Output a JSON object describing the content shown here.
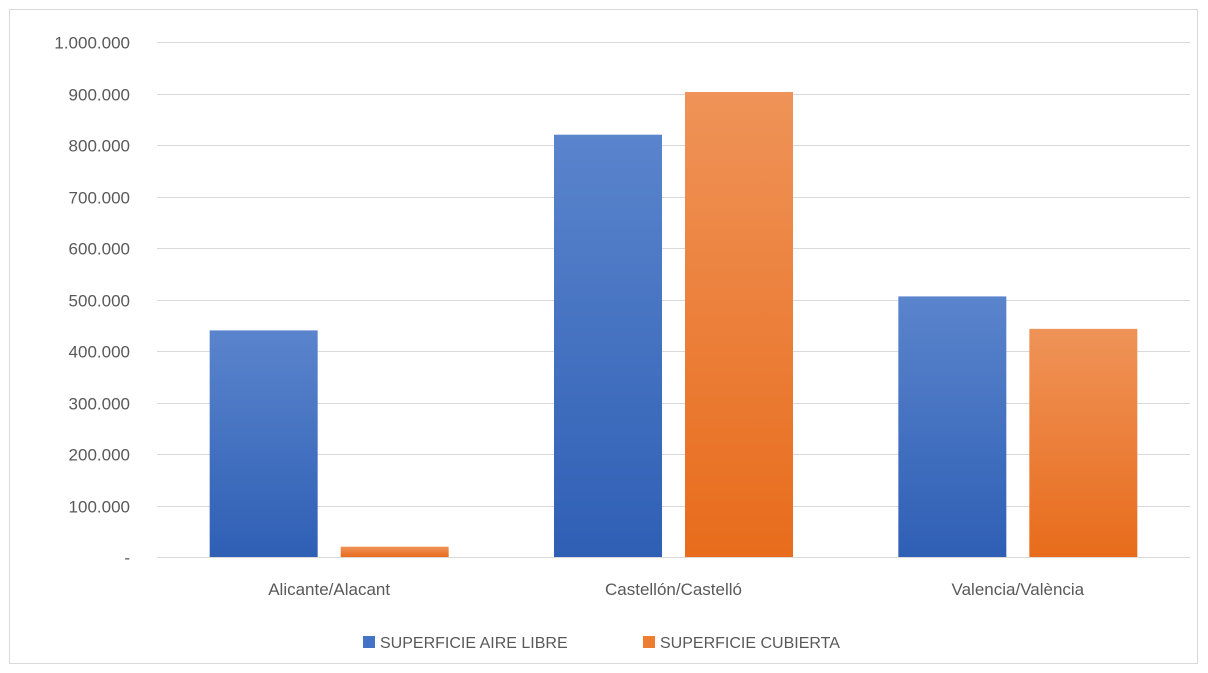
{
  "chart_data": {
    "type": "bar",
    "categories": [
      "Alicante/Alacant",
      "Castellón/Castelló",
      "Valencia/València"
    ],
    "series": [
      {
        "name": "SUPERFICIE AIRE LIBRE",
        "values": [
          440000,
          820000,
          506000
        ],
        "color": "#4472c4"
      },
      {
        "name": "SUPERFICIE CUBIERTA",
        "values": [
          20000,
          903000,
          443000
        ],
        "color": "#ed7d31"
      }
    ],
    "ylim": [
      0,
      1000000
    ],
    "y_ticks": [
      0,
      100000,
      200000,
      300000,
      400000,
      500000,
      600000,
      700000,
      800000,
      900000,
      1000000
    ],
    "y_tick_labels": [
      "-",
      "100.000",
      "200.000",
      "300.000",
      "400.000",
      "500.000",
      "600.000",
      "700.000",
      "800.000",
      "900.000",
      "1.000.000"
    ],
    "grid": true,
    "legend_position": "bottom"
  }
}
